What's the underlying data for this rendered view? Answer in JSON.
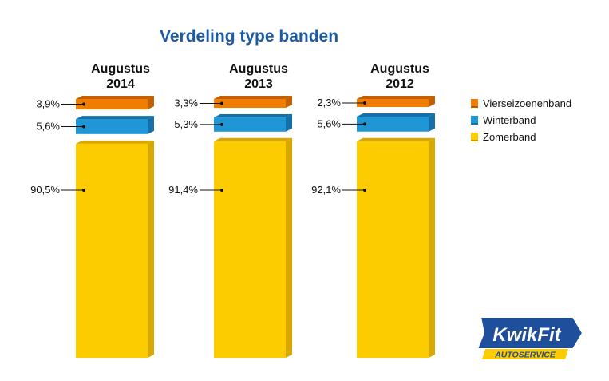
{
  "title": "Verdeling type banden",
  "legend": {
    "items": [
      {
        "label": "Vierseizoenenband",
        "color": "#ee7d00"
      },
      {
        "label": "Winterband",
        "color": "#1f97d6"
      },
      {
        "label": "Zomerband",
        "color": "#fccb00"
      }
    ]
  },
  "logo": {
    "brand": "KwikFit",
    "sub": "AUTOSERVICE"
  },
  "chart_data": {
    "type": "bar",
    "title": "Verdeling type banden",
    "categories": [
      "Augustus\n2014",
      "Augustus\n2013",
      "Augustus\n2012"
    ],
    "category_lines": [
      [
        "Augustus",
        "2014"
      ],
      [
        "Augustus",
        "2013"
      ],
      [
        "Augustus",
        "2012"
      ]
    ],
    "series": [
      {
        "name": "Vierseizoenenband",
        "values": [
          3.9,
          3.3,
          2.3
        ],
        "labels": [
          "3,9%",
          "3,3%",
          "2,3%"
        ],
        "color": "#ee7d00",
        "side": "#c25f00"
      },
      {
        "name": "Winterband",
        "values": [
          5.6,
          5.3,
          5.6
        ],
        "labels": [
          "5,6%",
          "5,3%",
          "5,6%"
        ],
        "color": "#1f97d6",
        "side": "#1470a8"
      },
      {
        "name": "Zomerband",
        "values": [
          90.5,
          91.4,
          92.1
        ],
        "labels": [
          "90,5%",
          "91,4%",
          "92,1%"
        ],
        "color": "#fccb00",
        "side": "#d9a800"
      }
    ],
    "unit": "%",
    "legend_position": "right",
    "grid": false
  }
}
